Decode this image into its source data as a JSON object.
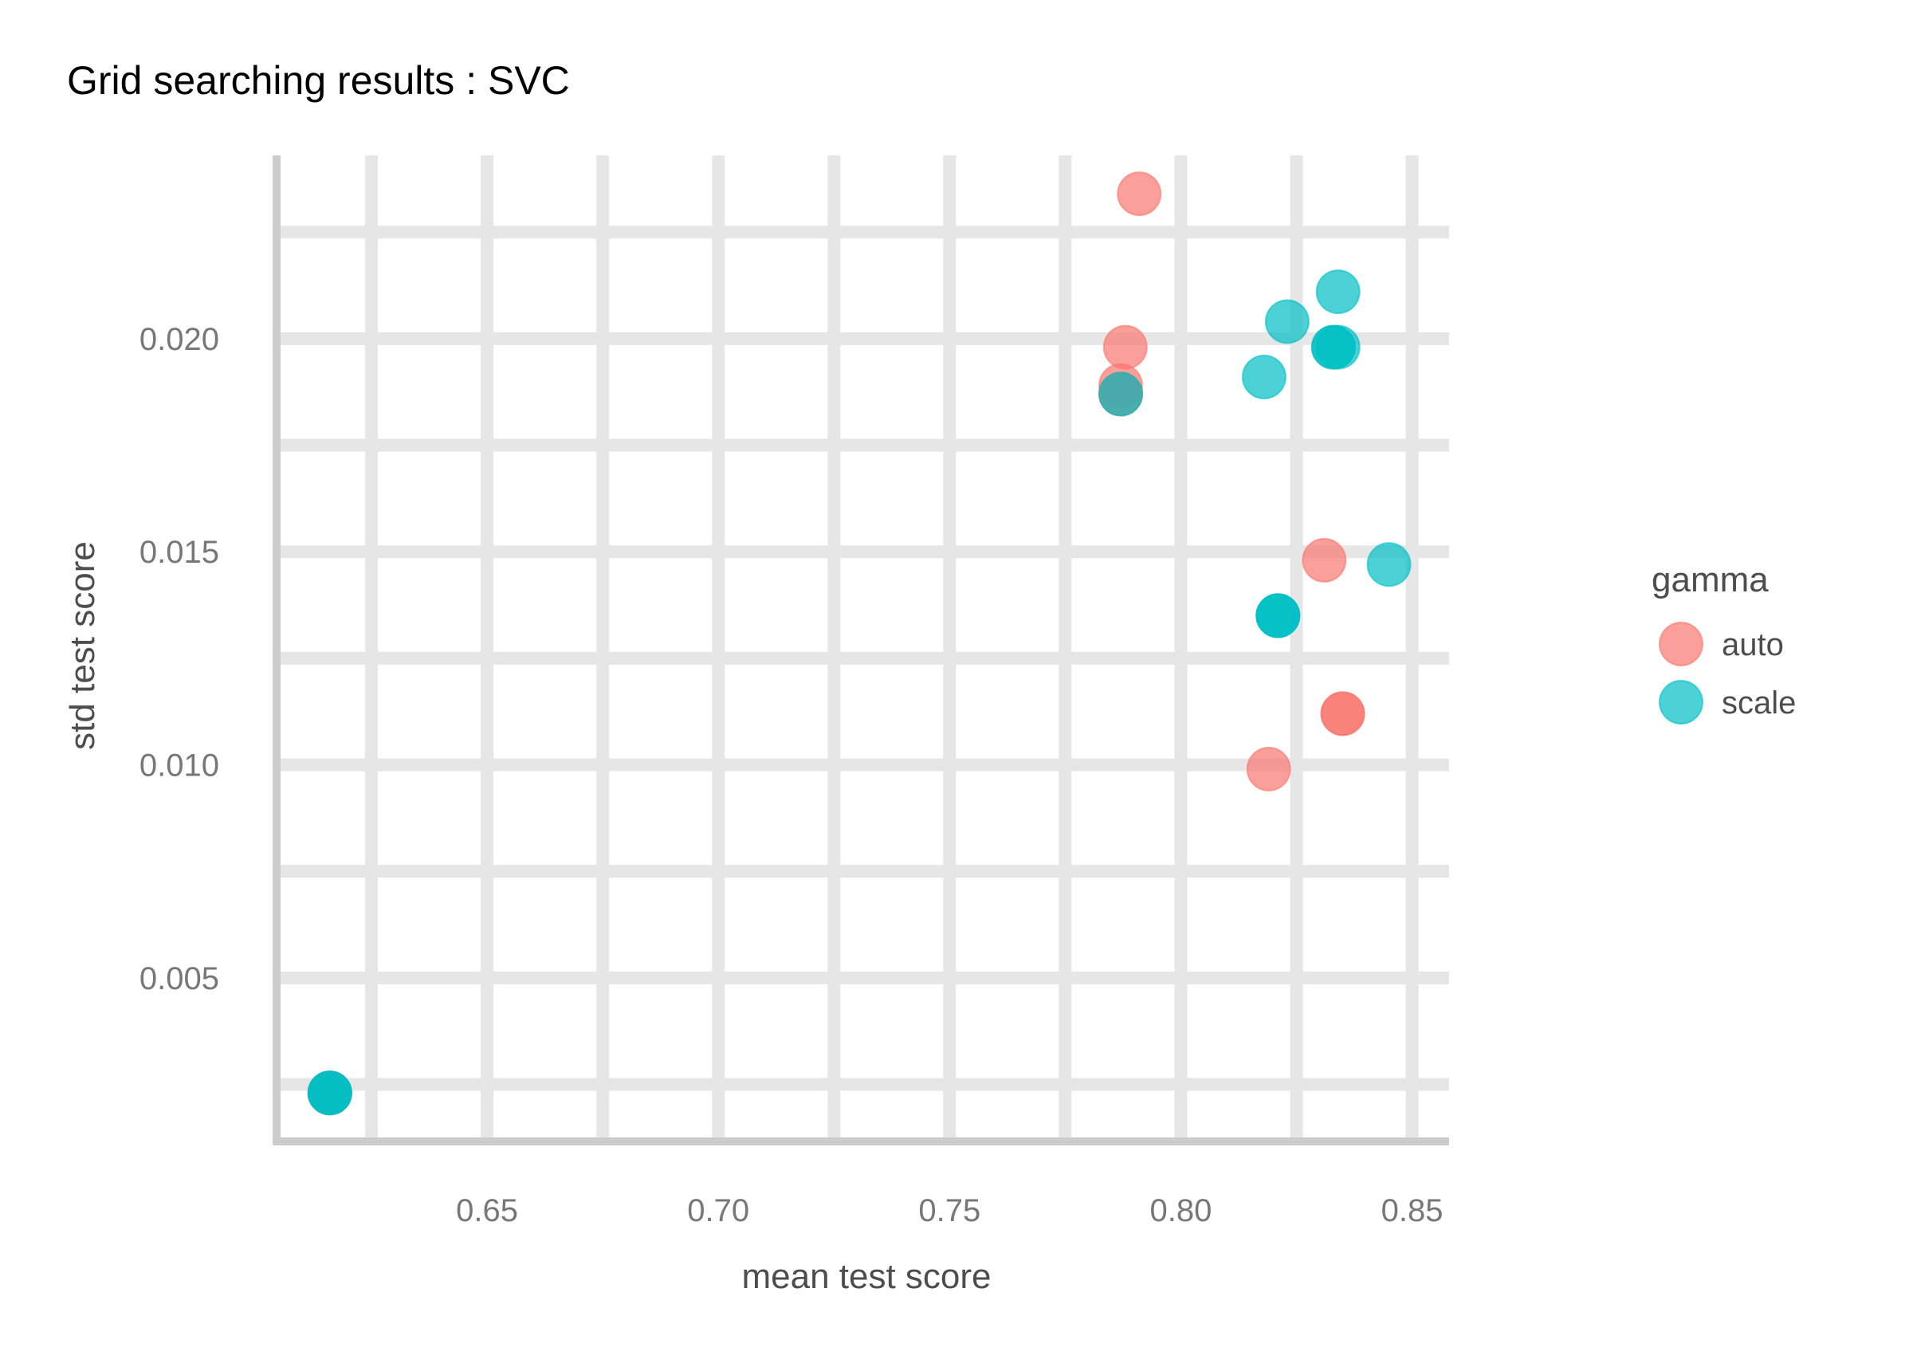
{
  "chart_data": {
    "type": "scatter",
    "title": "Grid searching results :  SVC",
    "xlabel": "mean test score",
    "ylabel": "std test score",
    "xlim": [
      0.605,
      0.858
    ],
    "ylim": [
      0.0012,
      0.0243
    ],
    "x_ticks": [
      {
        "value": 0.65,
        "label": "0.65"
      },
      {
        "value": 0.7,
        "label": "0.70"
      },
      {
        "value": 0.75,
        "label": "0.75"
      },
      {
        "value": 0.8,
        "label": "0.80"
      },
      {
        "value": 0.85,
        "label": "0.85"
      }
    ],
    "y_ticks": [
      {
        "value": 0.005,
        "label": "0.005"
      },
      {
        "value": 0.01,
        "label": "0.010"
      },
      {
        "value": 0.015,
        "label": "0.015"
      },
      {
        "value": 0.02,
        "label": "0.020"
      }
    ],
    "grid": true,
    "legend_position": "right",
    "legend_title": "gamma",
    "series": [
      {
        "name": "auto",
        "color": "#f8766d",
        "points": [
          {
            "x": 0.791,
            "y": 0.0234
          },
          {
            "x": 0.788,
            "y": 0.0198
          },
          {
            "x": 0.787,
            "y": 0.0189
          },
          {
            "x": 0.787,
            "y": 0.0187
          },
          {
            "x": 0.787,
            "y": 0.0187
          },
          {
            "x": 0.831,
            "y": 0.0148
          },
          {
            "x": 0.835,
            "y": 0.0112
          },
          {
            "x": 0.835,
            "y": 0.0112
          },
          {
            "x": 0.819,
            "y": 0.0099
          },
          {
            "x": 0.616,
            "y": 0.0023
          },
          {
            "x": 0.616,
            "y": 0.0023
          }
        ]
      },
      {
        "name": "scale",
        "color": "#00bfc4",
        "points": [
          {
            "x": 0.834,
            "y": 0.0211
          },
          {
            "x": 0.823,
            "y": 0.0204
          },
          {
            "x": 0.833,
            "y": 0.0198
          },
          {
            "x": 0.834,
            "y": 0.0198
          },
          {
            "x": 0.833,
            "y": 0.0198
          },
          {
            "x": 0.818,
            "y": 0.0191
          },
          {
            "x": 0.787,
            "y": 0.0187
          },
          {
            "x": 0.845,
            "y": 0.0147
          },
          {
            "x": 0.821,
            "y": 0.0135
          },
          {
            "x": 0.821,
            "y": 0.0135
          },
          {
            "x": 0.821,
            "y": 0.0135
          },
          {
            "x": 0.616,
            "y": 0.0023
          },
          {
            "x": 0.616,
            "y": 0.0023
          },
          {
            "x": 0.616,
            "y": 0.0023
          }
        ]
      }
    ]
  }
}
